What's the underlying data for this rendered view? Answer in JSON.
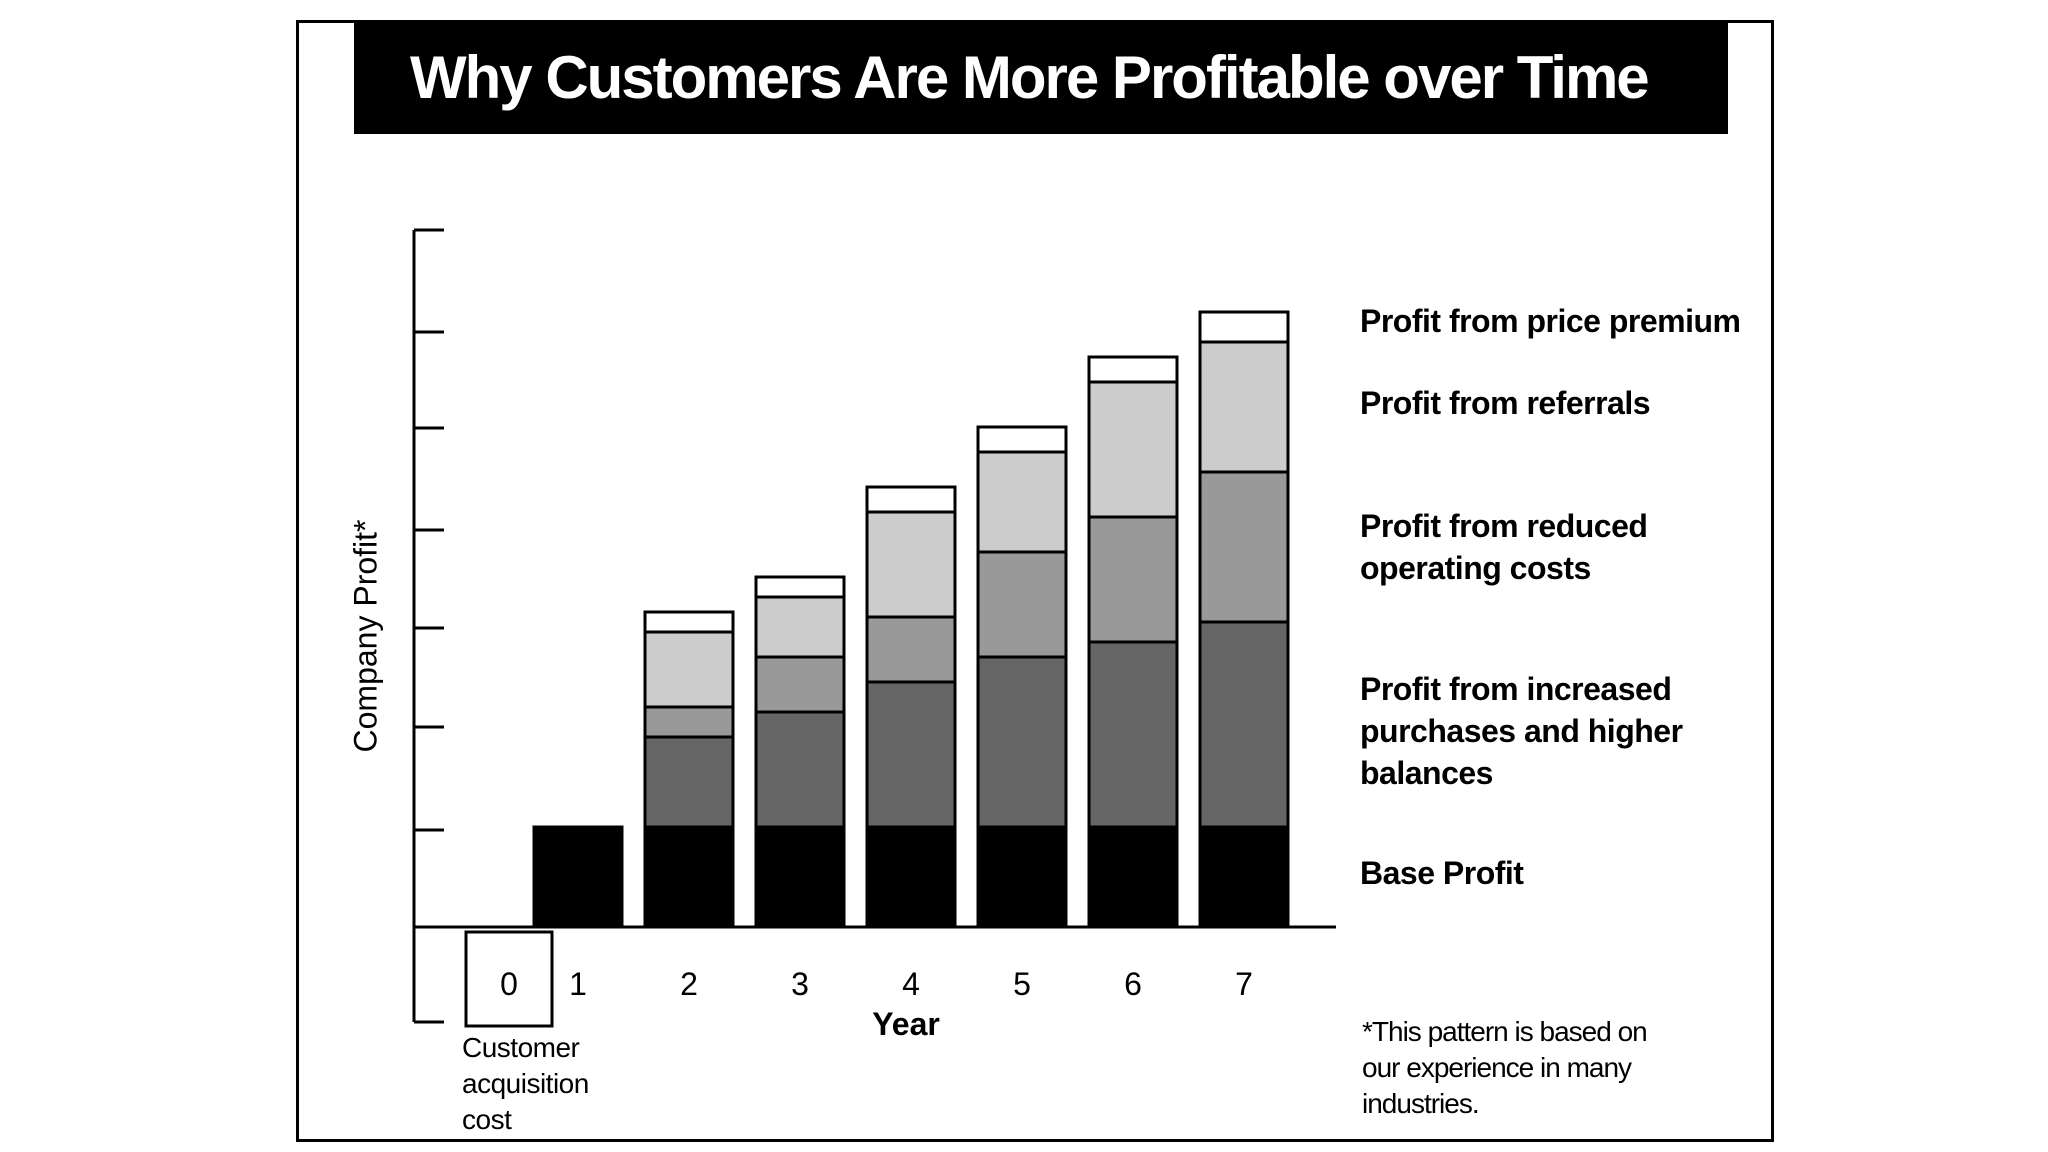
{
  "chart_data": {
    "type": "bar",
    "stacked": true,
    "title": "Why Customers Are More Profitable over Time",
    "xlabel": "Year",
    "ylabel": "Company Profit*",
    "categories": [
      "0",
      "1",
      "2",
      "3",
      "4",
      "5",
      "6",
      "7"
    ],
    "zero_category_label": "Customer acquisition cost",
    "ylim": [
      0,
      7
    ],
    "series": [
      {
        "name": "Base Profit",
        "color": "#000000",
        "values": [
          0,
          1.0,
          1.0,
          1.0,
          1.0,
          1.0,
          1.0,
          1.0
        ]
      },
      {
        "name": "Profit from increased purchases and higher balances",
        "color": "#666666",
        "values": [
          0,
          0,
          0.9,
          1.15,
          1.45,
          1.7,
          1.85,
          2.05
        ]
      },
      {
        "name": "Profit from reduced operating costs",
        "color": "#999999",
        "values": [
          0,
          0,
          0.3,
          0.55,
          0.65,
          1.05,
          1.25,
          1.5
        ]
      },
      {
        "name": "Profit from referrals",
        "color": "#cccccc",
        "values": [
          0,
          0,
          0.75,
          0.6,
          1.05,
          1.0,
          1.35,
          1.3
        ]
      },
      {
        "name": "Profit from price premium",
        "color": "#ffffff",
        "values": [
          0,
          0,
          0.2,
          0.2,
          0.25,
          0.25,
          0.25,
          0.3
        ]
      }
    ],
    "grid": false,
    "legend_position": "right",
    "footnote": "*This pattern is based on\nour experience in many\nindustries."
  },
  "legend_labels": {
    "price_premium": "Profit from price premium",
    "referrals": "Profit from referrals",
    "reduced_costs": "Profit from reduced\noperating costs",
    "increased_purchases": "Profit from increased\npurchases and higher\nbalances",
    "base": "Base Profit"
  },
  "acquisition_label": "Customer\nacquisition\ncost"
}
